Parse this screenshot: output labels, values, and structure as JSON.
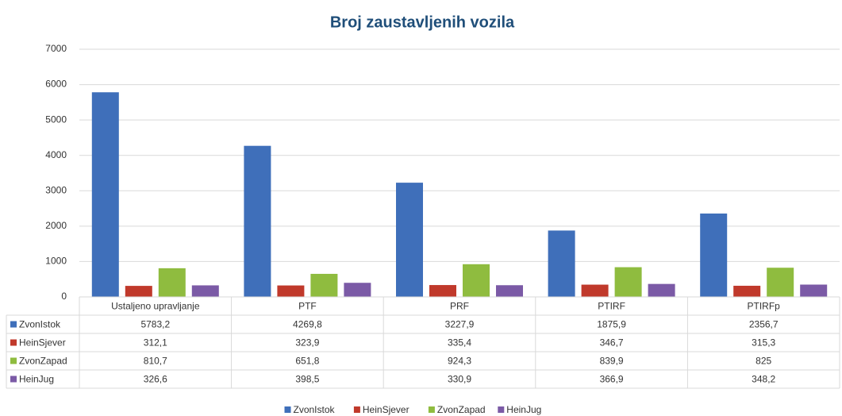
{
  "chart_data": {
    "type": "bar",
    "title": "Broj zaustavljenih vozila",
    "categories": [
      "Ustaljeno upravljanje",
      "PTF",
      "PRF",
      "PTIRF",
      "PTIRFp"
    ],
    "series": [
      {
        "name": "ZvonIstok",
        "color": "#3f6fba",
        "values": [
          5783.2,
          4269.8,
          3227.9,
          1875.9,
          2356.7
        ],
        "value_labels": [
          "5783,2",
          "4269,8",
          "3227,9",
          "1875,9",
          "2356,7"
        ]
      },
      {
        "name": "HeinSjever",
        "color": "#c0392b",
        "values": [
          312.1,
          323.9,
          335.4,
          346.7,
          315.3
        ],
        "value_labels": [
          "312,1",
          "323,9",
          "335,4",
          "346,7",
          "315,3"
        ]
      },
      {
        "name": "ZvonZapad",
        "color": "#8fbc3f",
        "values": [
          810.7,
          651.8,
          924.3,
          839.9,
          825
        ],
        "value_labels": [
          "810,7",
          "651,8",
          "924,3",
          "839,9",
          "825"
        ]
      },
      {
        "name": "HeinJug",
        "color": "#7b5aa6",
        "values": [
          326.6,
          398.5,
          330.9,
          366.9,
          348.2
        ],
        "value_labels": [
          "326,6",
          "398,5",
          "330,9",
          "366,9",
          "348,2"
        ]
      }
    ],
    "ylim": [
      0,
      7000
    ],
    "yticks": [
      0,
      1000,
      2000,
      3000,
      4000,
      5000,
      6000,
      7000
    ],
    "grid": true,
    "legend": "bottom"
  }
}
